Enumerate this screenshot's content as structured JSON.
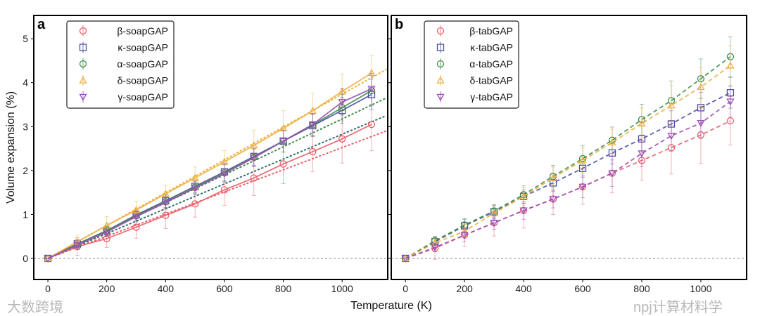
{
  "chart_data": [
    {
      "type": "line",
      "panel_label": "a",
      "line_style": "solid",
      "xlabel": "Temperature (K)",
      "ylabel": "Volume expansion (%)",
      "xlim": [
        -48,
        1155
      ],
      "ylim": [
        -0.48,
        5.53
      ],
      "xticks": [
        0,
        200,
        400,
        600,
        800,
        1000
      ],
      "yticks": [
        0,
        1,
        2,
        3,
        4,
        5
      ],
      "zero_line": true,
      "legend_position": "top-left",
      "x": [
        0,
        100,
        200,
        300,
        400,
        500,
        600,
        700,
        800,
        900,
        1000,
        1100
      ],
      "series": [
        {
          "name": "β-soapGAP",
          "color": "#e8606a",
          "marker": "circle",
          "values": [
            0,
            0.27,
            0.45,
            0.71,
            0.98,
            1.24,
            1.56,
            1.83,
            2.15,
            2.43,
            2.72,
            3.05
          ],
          "err": [
            0,
            0.2,
            0.2,
            0.25,
            0.3,
            0.3,
            0.35,
            0.4,
            0.45,
            0.45,
            0.55,
            0.6
          ]
        },
        {
          "name": "κ-soapGAP",
          "color": "#4b4ea0",
          "marker": "square",
          "values": [
            0,
            0.33,
            0.63,
            0.99,
            1.31,
            1.64,
            1.97,
            2.32,
            2.67,
            3.02,
            3.37,
            3.73
          ],
          "err": [
            0,
            0.1,
            0.1,
            0.12,
            0.15,
            0.15,
            0.2,
            0.2,
            0.25,
            0.25,
            0.3,
            0.35
          ]
        },
        {
          "name": "α-soapGAP",
          "color": "#3f8f4a",
          "marker": "circle",
          "values": [
            0,
            0.32,
            0.62,
            0.97,
            1.29,
            1.62,
            1.95,
            2.3,
            2.67,
            3.04,
            3.43,
            3.82
          ],
          "err": [
            0,
            0.1,
            0.1,
            0.12,
            0.15,
            0.15,
            0.2,
            0.2,
            0.25,
            0.25,
            0.3,
            0.35
          ]
        },
        {
          "name": "δ-soapGAP",
          "color": "#f0b040",
          "marker": "triangle-up",
          "values": [
            0,
            0.38,
            0.75,
            1.1,
            1.47,
            1.83,
            2.2,
            2.57,
            2.96,
            3.36,
            3.8,
            4.22
          ],
          "err": [
            0,
            0.15,
            0.2,
            0.2,
            0.2,
            0.25,
            0.25,
            0.35,
            0.4,
            0.4,
            0.4,
            0.4
          ]
        },
        {
          "name": "γ-soapGAP",
          "color": "#9b4fb8",
          "marker": "triangle-down",
          "values": [
            0,
            0.3,
            0.6,
            0.95,
            1.27,
            1.6,
            1.93,
            2.29,
            2.67,
            3.05,
            3.56,
            3.86
          ],
          "err": [
            0,
            0.1,
            0.1,
            0.12,
            0.15,
            0.15,
            0.2,
            0.2,
            0.25,
            0.25,
            0.3,
            0.35
          ]
        }
      ],
      "reference_lines": [
        {
          "color": "#e8606a",
          "x": [
            0,
            1150
          ],
          "values": [
            0,
            2.9
          ]
        },
        {
          "color": "#2f6f6a",
          "x": [
            0,
            1150
          ],
          "values": [
            0,
            3.25
          ]
        },
        {
          "color": "#3f8f4a",
          "x": [
            0,
            1150
          ],
          "values": [
            0,
            3.65
          ]
        },
        {
          "color": "#f0b040",
          "x": [
            0,
            1150
          ],
          "values": [
            0,
            4.3
          ]
        }
      ]
    },
    {
      "type": "line",
      "panel_label": "b",
      "line_style": "dashed",
      "xlim": [
        -48,
        1155
      ],
      "ylim": [
        -0.48,
        5.53
      ],
      "xticks": [
        0,
        200,
        400,
        600,
        800,
        1000
      ],
      "zero_line": true,
      "legend_position": "top-left",
      "x": [
        0,
        100,
        200,
        300,
        400,
        500,
        600,
        700,
        800,
        900,
        1000,
        1100
      ],
      "series": [
        {
          "name": "β-tabGAP",
          "color": "#e8606a",
          "marker": "circle",
          "values": [
            0,
            0.23,
            0.53,
            0.81,
            1.09,
            1.35,
            1.63,
            1.94,
            2.23,
            2.52,
            2.81,
            3.13
          ],
          "err": [
            0,
            0.25,
            0.25,
            0.3,
            0.4,
            0.35,
            0.4,
            0.45,
            0.45,
            0.6,
            0.65,
            0.55
          ]
        },
        {
          "name": "κ-tabGAP",
          "color": "#4b4ea0",
          "marker": "square",
          "values": [
            0,
            0.38,
            0.74,
            1.06,
            1.41,
            1.72,
            2.05,
            2.4,
            2.72,
            3.06,
            3.43,
            3.77
          ],
          "err": [
            0,
            0.1,
            0.15,
            0.15,
            0.15,
            0.2,
            0.2,
            0.25,
            0.3,
            0.3,
            0.35,
            0.35
          ]
        },
        {
          "name": "α-tabGAP",
          "color": "#3f8f4a",
          "marker": "circle",
          "values": [
            0,
            0.4,
            0.76,
            1.08,
            1.45,
            1.87,
            2.27,
            2.69,
            3.16,
            3.59,
            4.09,
            4.59
          ],
          "err": [
            0,
            0.1,
            0.15,
            0.15,
            0.2,
            0.25,
            0.3,
            0.3,
            0.35,
            0.45,
            0.45,
            0.45
          ]
        },
        {
          "name": "δ-tabGAP",
          "color": "#f0b040",
          "marker": "triangle-up",
          "values": [
            0,
            0.35,
            0.62,
            1.03,
            1.41,
            1.83,
            2.23,
            2.64,
            3.07,
            3.48,
            3.9,
            4.39
          ],
          "err": [
            0,
            0.1,
            0.15,
            0.15,
            0.2,
            0.25,
            0.3,
            0.3,
            0.35,
            0.45,
            0.45,
            0.45
          ]
        },
        {
          "name": "γ-tabGAP",
          "color": "#9b4fb8",
          "marker": "triangle-down",
          "values": [
            0,
            0.25,
            0.53,
            0.81,
            1.09,
            1.35,
            1.63,
            1.94,
            2.39,
            2.79,
            3.08,
            3.57
          ],
          "err": [
            0,
            0.1,
            0.15,
            0.15,
            0.2,
            0.2,
            0.25,
            0.3,
            0.3,
            0.35,
            0.35,
            0.35
          ]
        }
      ]
    }
  ],
  "watermarks": [
    "大数跨境",
    "npj计算材料学"
  ]
}
